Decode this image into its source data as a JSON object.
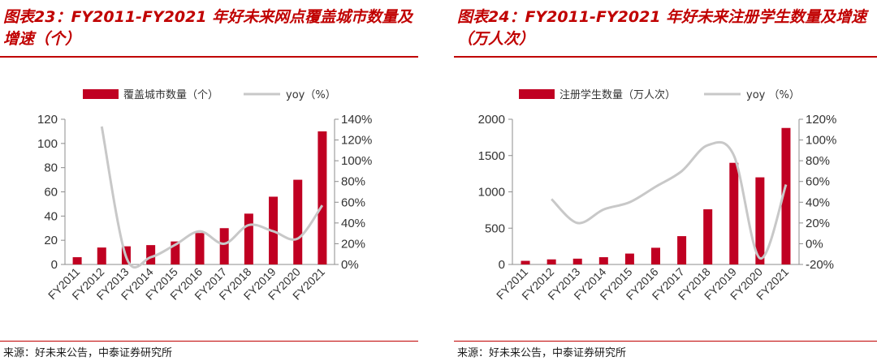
{
  "charts": [
    {
      "title": "图表23：FY2011-FY2021 年好未来网点覆盖城市数量及增速（个）",
      "source": "来源：好未来公告，中泰证券研究所"
    },
    {
      "title": "图表24：FY2011-FY2021 年好未来注册学生数量及增速（万人次）",
      "source": "来源：好未来公告，中泰证券研究所"
    }
  ],
  "chart_data": [
    {
      "type": "bar",
      "categories": [
        "FY2011",
        "FY2012",
        "FY2013",
        "FY2014",
        "FY2015",
        "FY2016",
        "FY2017",
        "FY2018",
        "FY2019",
        "FY2020",
        "FY2021"
      ],
      "series": [
        {
          "name": "覆盖城市数量（个）",
          "type": "bar",
          "axis": "left",
          "color": "#c00022",
          "values": [
            6,
            14,
            15,
            16,
            19,
            26,
            30,
            42,
            56,
            70,
            110
          ]
        },
        {
          "name": "yoy（%）",
          "type": "line",
          "axis": "right",
          "color": "#c8c8c8",
          "values": [
            null,
            133,
            7,
            7,
            19,
            32,
            20,
            38,
            32,
            25,
            57
          ]
        }
      ],
      "left_axis": {
        "min": 0,
        "max": 120,
        "step": 20,
        "ticks": [
          "0",
          "20",
          "40",
          "60",
          "80",
          "100",
          "120"
        ]
      },
      "right_axis": {
        "min": 0,
        "max": 140,
        "step": 20,
        "ticks": [
          "0%",
          "20%",
          "40%",
          "60%",
          "80%",
          "100%",
          "120%",
          "140%"
        ]
      },
      "legend_position": "top",
      "grid": false
    },
    {
      "type": "bar",
      "categories": [
        "FY2011",
        "FY2012",
        "FY2013",
        "FY2014",
        "FY2015",
        "FY2016",
        "FY2017",
        "FY2018",
        "FY2019",
        "FY2020",
        "FY2021"
      ],
      "series": [
        {
          "name": "注册学生数量（万人次）",
          "type": "bar",
          "axis": "left",
          "color": "#c00022",
          "values": [
            50,
            70,
            80,
            100,
            150,
            230,
            390,
            760,
            1400,
            1200,
            1880
          ]
        },
        {
          "name": "yoy （%）",
          "type": "line",
          "axis": "right",
          "color": "#c8c8c8",
          "values": [
            null,
            43,
            20,
            33,
            40,
            55,
            70,
            95,
            85,
            -14,
            57
          ]
        }
      ],
      "left_axis": {
        "min": 0,
        "max": 2000,
        "step": 500,
        "ticks": [
          "0",
          "500",
          "1000",
          "1500",
          "2000"
        ]
      },
      "right_axis": {
        "min": -20,
        "max": 120,
        "step": 20,
        "ticks": [
          "-20%",
          "0%",
          "20%",
          "40%",
          "60%",
          "80%",
          "100%",
          "120%"
        ]
      },
      "legend_position": "top",
      "grid": false
    }
  ]
}
